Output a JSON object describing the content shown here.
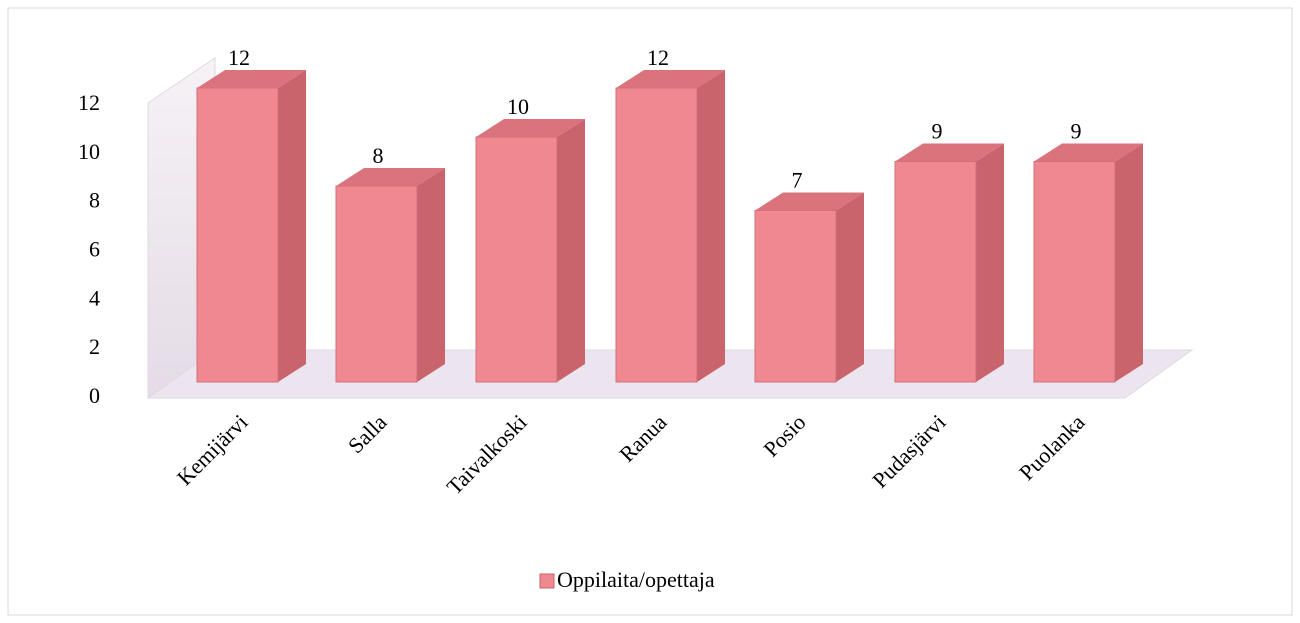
{
  "chart_data": {
    "type": "bar3d",
    "categories": [
      "Kemijärvi",
      "Salla",
      "Taivalkoski",
      "Ranua",
      "Posio",
      "Pudasjärvi",
      "Puolanka"
    ],
    "series": [
      {
        "name": "Oppilaita/opettaja",
        "color": "#f08890",
        "values": [
          12,
          8,
          10,
          12,
          7,
          9,
          9
        ]
      }
    ],
    "ylim": [
      0,
      12
    ],
    "yticks": [
      0,
      2,
      4,
      6,
      8,
      10,
      12
    ],
    "grid": false,
    "legend": "bottom"
  }
}
